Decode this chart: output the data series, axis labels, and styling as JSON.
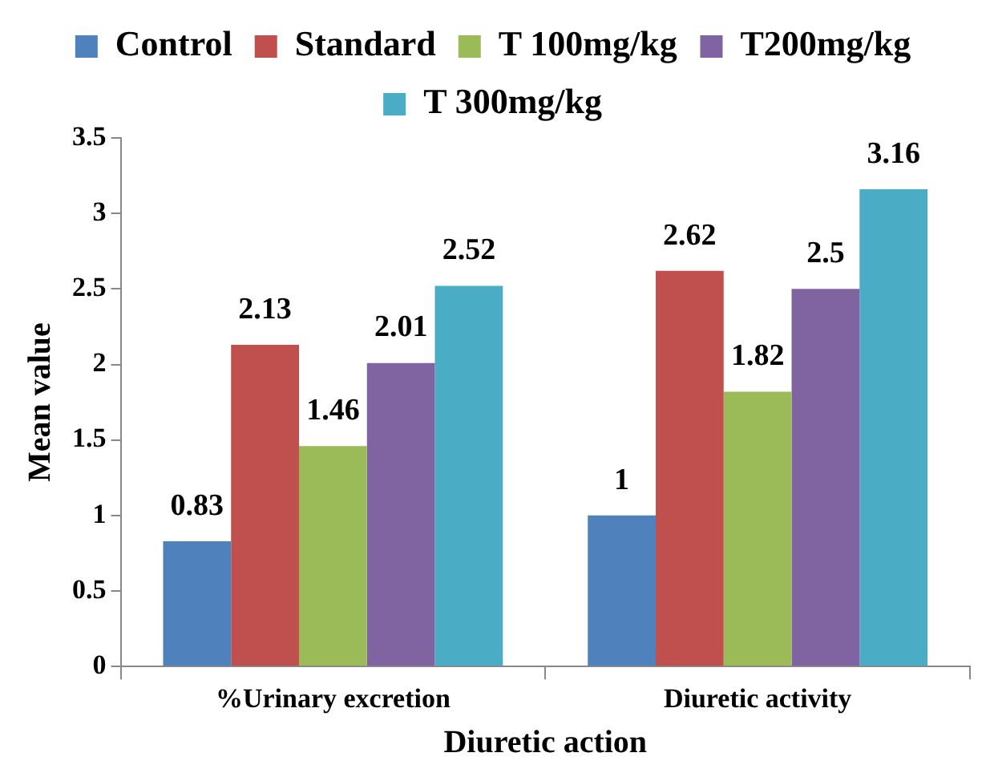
{
  "chart_data": {
    "type": "bar",
    "xlabel": "Diuretic action",
    "ylabel": "Mean value",
    "categories": [
      "%Urinary excretion",
      "Diuretic activity"
    ],
    "series": [
      {
        "name": "Control",
        "color": "#4f81bd",
        "values": [
          0.83,
          1
        ]
      },
      {
        "name": "Standard",
        "color": "#c0504d",
        "values": [
          2.13,
          2.62
        ]
      },
      {
        "name": "T 100mg/kg",
        "color": "#9bbb59",
        "values": [
          1.46,
          1.82
        ]
      },
      {
        "name": "T200mg/kg",
        "color": "#8064a2",
        "values": [
          2.01,
          2.5
        ]
      },
      {
        "name": "T 300mg/kg",
        "color": "#4bacc6",
        "values": [
          2.52,
          3.16
        ]
      }
    ],
    "ylim": [
      0,
      3.5
    ],
    "yticks": [
      0,
      0.5,
      1,
      1.5,
      2,
      2.5,
      3,
      3.5
    ],
    "grid": false,
    "legend": "top",
    "data_labels": true
  }
}
